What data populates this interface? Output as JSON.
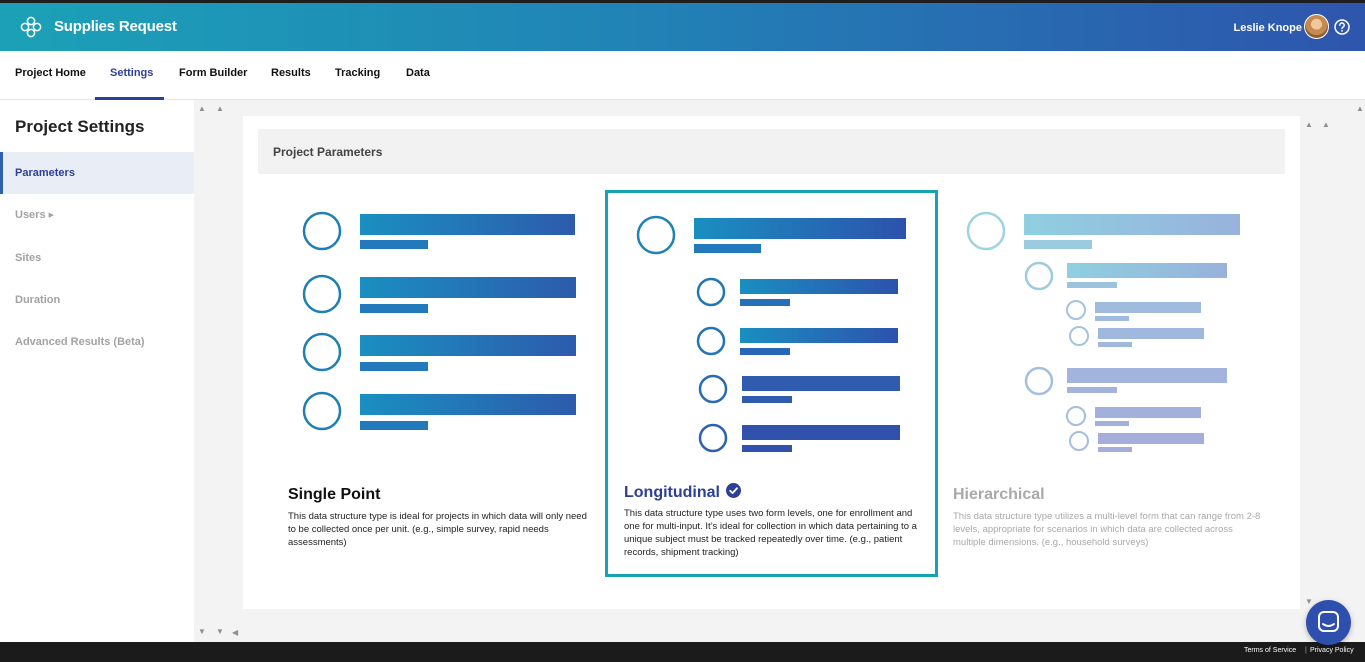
{
  "header": {
    "app_title": "Supplies Request",
    "user_name": "Leslie Knope",
    "logo_icon": "flower-logo-icon",
    "help_icon": "question-circle-icon"
  },
  "tabs": [
    {
      "label": "Project Home"
    },
    {
      "label": "Settings",
      "active": true
    },
    {
      "label": "Form Builder"
    },
    {
      "label": "Results"
    },
    {
      "label": "Tracking"
    },
    {
      "label": "Data"
    }
  ],
  "sidebar": {
    "title": "Project Settings",
    "items": [
      {
        "label": "Parameters",
        "active": true
      },
      {
        "label": "Users",
        "has_submenu": true
      },
      {
        "label": "Sites"
      },
      {
        "label": "Duration"
      },
      {
        "label": "Advanced Results (Beta)"
      }
    ]
  },
  "main": {
    "section_title": "Project Parameters",
    "options": [
      {
        "name": "Single Point",
        "description": "This data structure type is ideal for projects in which data will only need to be collected once per unit. (e.g., simple survey, rapid needs assessments)",
        "selected": false
      },
      {
        "name": "Longitudinal",
        "description": "This data structure type uses two form levels, one for enrollment and one for multi-input. It’s ideal for collection in which data pertaining to a unique subject must be tracked repeatedly over time. (e.g., patient records, shipment tracking)",
        "selected": true
      },
      {
        "name": "Hierarchical",
        "description": "This data structure type utilizes a multi-level form that can range from 2-8 levels, appropriate for scenarios in which data are collected across multiple dimensions. (e.g., household surveys)",
        "selected": false
      }
    ]
  },
  "footer": {
    "terms": "Terms of Service",
    "separator": "|",
    "privacy": "Privacy Policy"
  },
  "colors": {
    "accent": "#2e3f98",
    "selected_border": "#19a3b2",
    "header_start": "#1ba1b7",
    "header_end": "#2e55ad"
  }
}
